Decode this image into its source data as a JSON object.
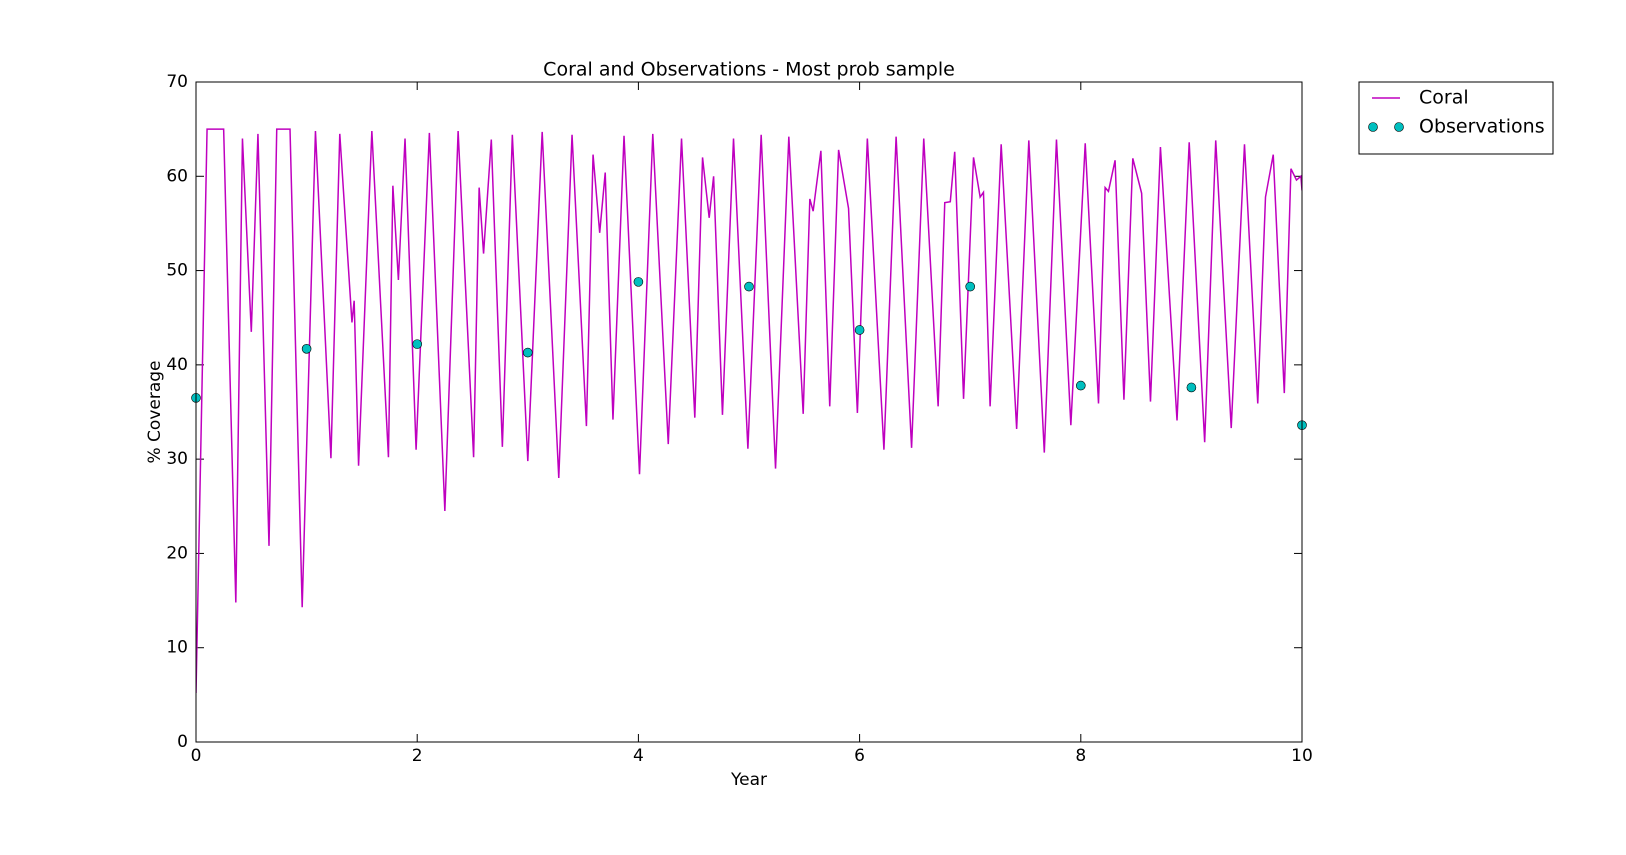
{
  "chart_data": {
    "type": "line",
    "title": "Coral and Observations - Most prob sample",
    "xlabel": "Year",
    "ylabel": "% Coverage",
    "xlim": [
      0,
      10
    ],
    "xticks": [
      0,
      2,
      4,
      6,
      8,
      10
    ],
    "ylim": [
      0,
      70
    ],
    "yticks": [
      0,
      10,
      20,
      30,
      40,
      50,
      60,
      70
    ],
    "grid": false,
    "legend": "outside-right",
    "series": [
      {
        "name": "Coral",
        "style": "line",
        "color": "#bf00bf",
        "x": [
          0,
          0.1,
          0.25,
          0.36,
          0.42,
          0.5,
          0.56,
          0.66,
          0.73,
          0.79,
          0.85,
          0.96,
          1.08,
          1.22,
          1.3,
          1.41,
          1.43,
          1.47,
          1.59,
          1.74,
          1.78,
          1.83,
          1.89,
          1.99,
          2.11,
          2.25,
          2.37,
          2.51,
          2.56,
          2.6,
          2.67,
          2.77,
          2.86,
          3.0,
          3.13,
          3.28,
          3.4,
          3.53,
          3.59,
          3.65,
          3.7,
          3.77,
          3.87,
          4.01,
          4.13,
          4.27,
          4.39,
          4.51,
          4.58,
          4.64,
          4.68,
          4.76,
          4.86,
          4.99,
          5.11,
          5.24,
          5.36,
          5.49,
          5.55,
          5.58,
          5.65,
          5.73,
          5.81,
          5.9,
          5.98,
          6.07,
          6.22,
          6.33,
          6.47,
          6.58,
          6.71,
          6.77,
          6.82,
          6.86,
          6.94,
          7.03,
          7.09,
          7.12,
          7.18,
          7.28,
          7.42,
          7.53,
          7.67,
          7.78,
          7.91,
          8.04,
          8.16,
          8.22,
          8.25,
          8.31,
          8.39,
          8.47,
          8.55,
          8.63,
          8.72,
          8.87,
          8.98,
          9.12,
          9.22,
          9.36,
          9.48,
          9.6,
          9.67,
          9.74,
          9.84,
          9.9,
          9.95,
          9.99,
          10
        ],
        "values": [
          5.2,
          65,
          65,
          14.8,
          64,
          43.5,
          64.5,
          20.8,
          65,
          65,
          65,
          14.3,
          64.8,
          30.1,
          64.5,
          44.5,
          46.8,
          29.3,
          64.8,
          30.2,
          59,
          49,
          64,
          31,
          64.6,
          24.5,
          64.8,
          30.2,
          58.8,
          51.8,
          63.9,
          31.3,
          64.4,
          29.8,
          64.7,
          28,
          64.4,
          33.5,
          62.3,
          54,
          60.4,
          34.2,
          64.3,
          28.4,
          64.5,
          31.6,
          64,
          34.4,
          62,
          55.6,
          60,
          34.7,
          64,
          31.1,
          64.4,
          29,
          64.2,
          34.8,
          57.6,
          56.3,
          62.7,
          35.6,
          62.8,
          56.6,
          34.9,
          64,
          31,
          64.2,
          31.2,
          64,
          35.6,
          57.2,
          57.3,
          62.6,
          36.4,
          62,
          57.8,
          58.3,
          35.6,
          63.4,
          33.2,
          63.8,
          30.7,
          63.9,
          33.6,
          63.5,
          35.9,
          58.8,
          58.4,
          61.7,
          36.3,
          61.9,
          58.2,
          36.1,
          63.1,
          34.1,
          63.6,
          31.8,
          63.8,
          33.3,
          63.4,
          35.9,
          57.8,
          62.3,
          37,
          60.8,
          59.6,
          60,
          58.5
        ]
      },
      {
        "name": "Observations",
        "style": "markers",
        "color": "#00bfbf",
        "x": [
          0,
          1,
          2,
          3,
          4,
          5,
          6,
          7,
          8,
          9,
          10
        ],
        "values": [
          36.5,
          41.7,
          42.2,
          41.3,
          48.8,
          48.3,
          43.7,
          48.3,
          37.8,
          37.6,
          33.6
        ]
      }
    ]
  }
}
